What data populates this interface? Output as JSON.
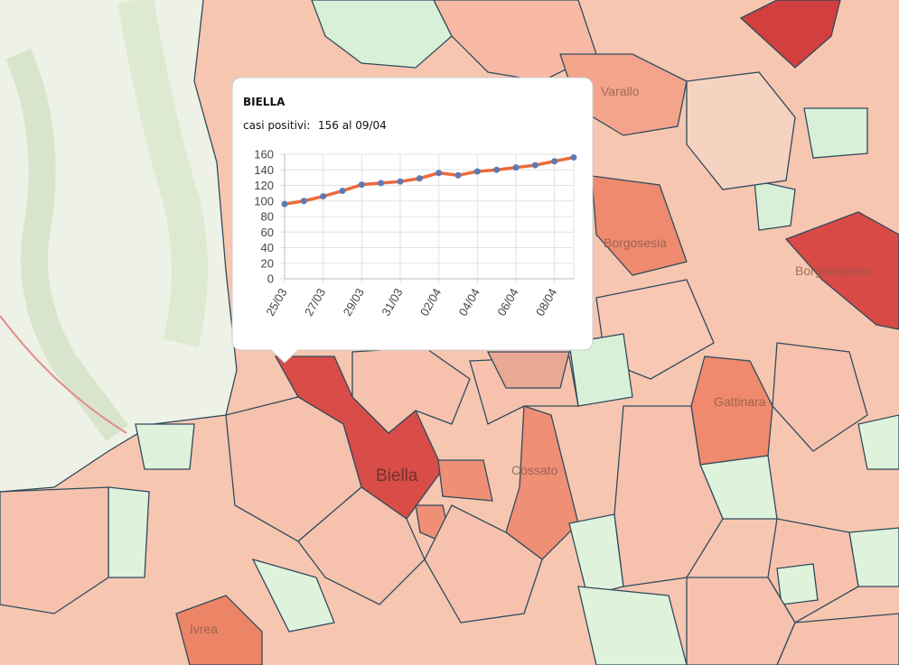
{
  "map": {
    "places": [
      "Varallo",
      "Borgosesia",
      "Borgomanero",
      "Gattinara",
      "Biella",
      "Cossato",
      "Ivrea"
    ]
  },
  "popup": {
    "title": "BIELLA",
    "label": "casi positivi:",
    "value_text": "156 al 09/04"
  },
  "chart_data": {
    "type": "line",
    "categories": [
      "25/03",
      null,
      "27/03",
      null,
      "29/03",
      null,
      "31/03",
      null,
      "02/04",
      null,
      "04/04",
      null,
      "06/04",
      null,
      "08/04",
      null
    ],
    "series": [
      {
        "name": "casi positivi",
        "color": "#ec6a3c",
        "marker_color": "#5b7bb8",
        "values": [
          96,
          100,
          106,
          113,
          121,
          123,
          125,
          129,
          136,
          133,
          138,
          140,
          143,
          146,
          151,
          156
        ]
      }
    ],
    "ylim": [
      0,
      160
    ],
    "yticks": [
      0,
      20,
      40,
      60,
      80,
      100,
      120,
      140,
      160
    ],
    "grid": true
  }
}
